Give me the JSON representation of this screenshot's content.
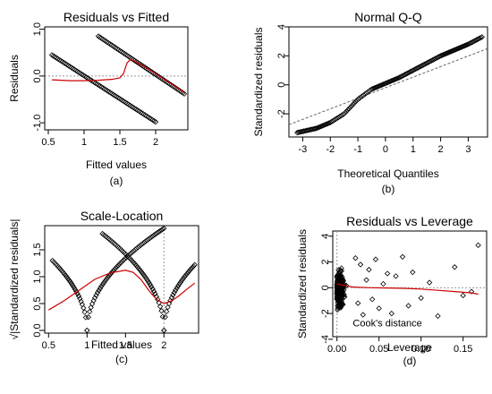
{
  "panels": [
    {
      "id": "rvf",
      "type": "scatter",
      "title": "Residuals vs Fitted",
      "xlabel": "Fitted values",
      "ylabel": "Residuals",
      "caption": "(a)",
      "xlim": [
        0.45,
        2.45
      ],
      "ylim": [
        -1.15,
        1.05
      ],
      "xticks": [
        0.5,
        1.0,
        1.5,
        2.0
      ],
      "yticks": [
        -1.0,
        0.0,
        1.0
      ],
      "ytick_labels": [
        "-1.0",
        "0.0",
        "1.0"
      ],
      "refline_y": 0,
      "point_color": "#000000",
      "smooth_color": "#cc0000",
      "point_bands": [
        {
          "x": [
            0.55,
            2.0
          ],
          "y": [
            0.45,
            -0.98
          ],
          "n": 70
        },
        {
          "x": [
            1.2,
            2.4
          ],
          "y": [
            0.85,
            -0.38
          ],
          "n": 60
        }
      ],
      "smoother": {
        "x": [
          0.55,
          0.8,
          1.0,
          1.2,
          1.4,
          1.5,
          1.55,
          1.6,
          1.65,
          1.7,
          1.9,
          2.1,
          2.3,
          2.4
        ],
        "y": [
          -0.08,
          -0.1,
          -0.1,
          -0.09,
          -0.07,
          -0.04,
          0.05,
          0.28,
          0.36,
          0.32,
          0.15,
          -0.05,
          -0.25,
          -0.35
        ]
      }
    },
    {
      "id": "qq",
      "type": "scatter",
      "title": "Normal Q-Q",
      "xlabel": "Theoretical Quantiles",
      "ylabel": "Standardized residuals",
      "caption": "(b)",
      "xlim": [
        -3.5,
        3.7
      ],
      "ylim": [
        -3.6,
        4.0
      ],
      "xticks": [
        -3,
        -2,
        -1,
        0,
        1,
        2,
        3
      ],
      "yticks": [
        -2,
        0,
        2,
        4
      ],
      "point_color": "#000000",
      "refline_points": [
        [
          -3.5,
          -2.75
        ],
        [
          3.7,
          2.5
        ]
      ],
      "qq_curve": {
        "x": [
          -3.2,
          -2.5,
          -2.0,
          -1.5,
          -1.0,
          -0.5,
          0.0,
          0.5,
          1.0,
          1.5,
          2.0,
          2.5,
          3.0,
          3.5
        ],
        "y": [
          -3.3,
          -3.0,
          -2.6,
          -2.0,
          -1.0,
          -0.3,
          0.1,
          0.5,
          1.0,
          1.5,
          2.0,
          2.4,
          2.8,
          3.3
        ]
      }
    },
    {
      "id": "sl",
      "type": "scatter",
      "title": "Scale-Location",
      "xlabel": "Fitted values",
      "ylabel": "√|Standardized residuals|",
      "caption": "(c)",
      "xlim": [
        0.45,
        2.45
      ],
      "ylim": [
        -0.05,
        1.95
      ],
      "xticks": [
        0.5,
        1.0,
        1.5,
        2.0
      ],
      "yticks": [
        0.0,
        0.5,
        1.0,
        1.5
      ],
      "ytick_labels": [
        "0.0",
        "0.5",
        "1.0",
        "1.5"
      ],
      "refline_x": 2.0,
      "point_color": "#000000",
      "smooth_color": "#cc0000",
      "point_bands": [
        {
          "x": [
            0.55,
            1.0
          ],
          "y": [
            1.3,
            0.0
          ],
          "n": 30,
          "curve": "sqrt"
        },
        {
          "x": [
            1.0,
            2.0
          ],
          "y": [
            0.0,
            1.9
          ],
          "n": 60,
          "curve": "sqrt"
        },
        {
          "x": [
            1.2,
            2.0
          ],
          "y": [
            1.8,
            0.0
          ],
          "n": 50,
          "curve": "sqrt"
        },
        {
          "x": [
            2.0,
            2.4
          ],
          "y": [
            0.0,
            1.22
          ],
          "n": 25,
          "curve": "sqrt"
        }
      ],
      "smoother": {
        "x": [
          0.5,
          0.7,
          0.9,
          1.1,
          1.3,
          1.5,
          1.6,
          1.7,
          1.8,
          1.9,
          2.0,
          2.1,
          2.2,
          2.3,
          2.4
        ],
        "y": [
          0.38,
          0.55,
          0.75,
          0.95,
          1.07,
          1.12,
          1.08,
          0.95,
          0.75,
          0.58,
          0.5,
          0.55,
          0.65,
          0.77,
          0.88
        ]
      }
    },
    {
      "id": "rvl",
      "type": "scatter",
      "title": "Residuals vs Leverage",
      "xlabel": "Leverage",
      "ylabel": "Standardized residuals",
      "caption": "(d)",
      "annotation": "Cook's distance",
      "xlim": [
        -0.005,
        0.178
      ],
      "ylim": [
        -3.8,
        4.4
      ],
      "xticks": [
        0.0,
        0.05,
        0.1,
        0.15
      ],
      "xtick_labels": [
        "0.00",
        "0.05",
        "0.10",
        "0.15"
      ],
      "yticks": [
        -4,
        -2,
        0,
        2,
        4
      ],
      "refline_y": 0,
      "refline_x": 0,
      "point_color": "#000000",
      "smooth_color": "#cc0000",
      "cluster": {
        "x_range": [
          0.0,
          0.02
        ],
        "y_range": [
          -3.2,
          3.0
        ],
        "n": 280
      },
      "outliers": {
        "x": [
          0.022,
          0.025,
          0.028,
          0.031,
          0.035,
          0.038,
          0.042,
          0.046,
          0.05,
          0.055,
          0.06,
          0.065,
          0.07,
          0.078,
          0.085,
          0.09,
          0.1,
          0.11,
          0.12,
          0.14,
          0.15,
          0.16,
          0.168
        ],
        "y": [
          2.3,
          -1.2,
          1.8,
          -2.1,
          0.6,
          1.4,
          -0.9,
          2.2,
          -1.6,
          0.3,
          1.1,
          -2.0,
          0.9,
          2.4,
          -1.4,
          1.2,
          -0.8,
          0.4,
          -2.2,
          1.6,
          -0.6,
          -0.3,
          3.3
        ]
      },
      "smoother": {
        "x": [
          0.0,
          0.01,
          0.02,
          0.04,
          0.06,
          0.08,
          0.1,
          0.12,
          0.14,
          0.16,
          0.168
        ],
        "y": [
          0.3,
          0.15,
          0.05,
          0.0,
          -0.02,
          -0.05,
          -0.1,
          -0.2,
          -0.3,
          -0.4,
          -0.5
        ]
      }
    }
  ]
}
